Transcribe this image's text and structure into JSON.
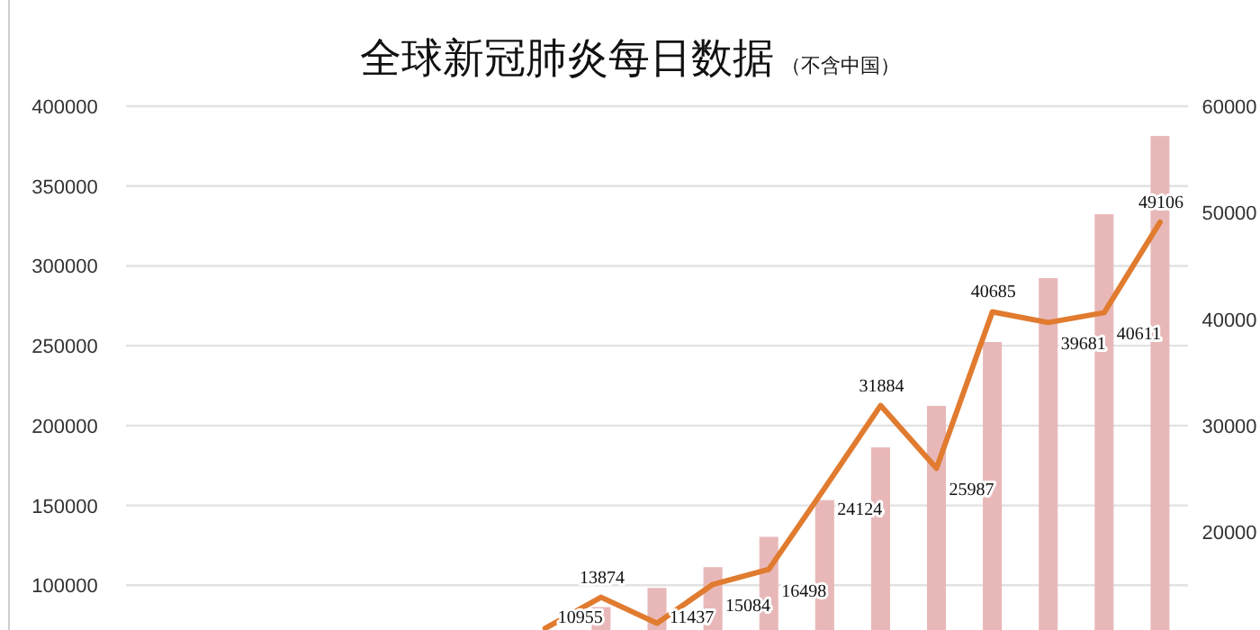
{
  "chart_data": {
    "type": "bar",
    "title": "全球新冠肺炎每日数据",
    "subtitle": "（不含中国）",
    "categories": [
      null,
      null,
      null,
      null,
      null,
      null,
      null,
      null,
      null,
      null,
      null,
      null,
      null,
      null,
      null,
      null,
      null,
      null,
      null
    ],
    "series": [
      {
        "color": "#e8b8b8",
        "values": [
          null,
          null,
          null,
          null,
          null,
          null,
          null,
          null,
          86000,
          98000,
          111000,
          130000,
          153000,
          186000,
          212000,
          252000,
          292000,
          332000,
          381000
        ]
      },
      {
        "type": "line",
        "axis": "y2",
        "color": "#e07b2f",
        "values": [
          null,
          null,
          null,
          null,
          null,
          null,
          null,
          10955,
          13874,
          11437,
          15084,
          16498,
          24124,
          31884,
          25987,
          40685,
          39681,
          40611,
          49106
        ],
        "value_labels": [
          null,
          null,
          null,
          null,
          null,
          null,
          null,
          "10955",
          "13874",
          "11437",
          "15084",
          "16498",
          "24124",
          "31884",
          "25987",
          "40685",
          "39681",
          "40611",
          "49106"
        ]
      }
    ],
    "ylim": [
      72000,
      400000
    ],
    "yticks": [
      100000,
      150000,
      200000,
      250000,
      300000,
      350000,
      400000
    ],
    "y2lim": [
      10800,
      60000
    ],
    "y2ticks": [
      20000,
      30000,
      40000,
      50000,
      60000
    ],
    "grid": "y",
    "marker": "none"
  }
}
